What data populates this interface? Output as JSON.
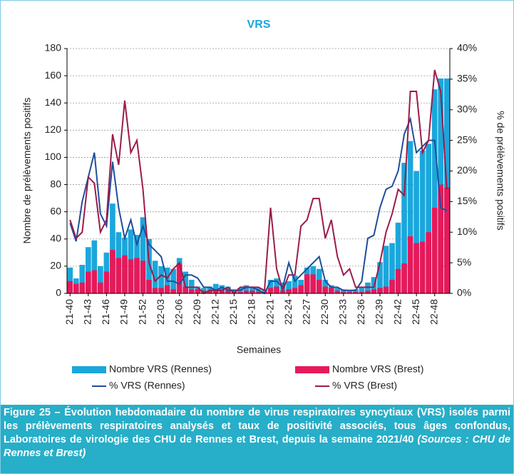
{
  "chart_data": {
    "type": "bar",
    "title": "VRS",
    "categories": [
      "21-40",
      null,
      null,
      "21-43",
      null,
      null,
      "21-46",
      null,
      null,
      "21-49",
      null,
      null,
      "21-52",
      null,
      null,
      "22-03",
      null,
      null,
      "22-06",
      null,
      null,
      "22-09",
      null,
      null,
      "22-12",
      null,
      null,
      "22-15",
      null,
      null,
      "22-18",
      null,
      null,
      "22-21",
      null,
      null,
      "22-24",
      null,
      null,
      "22-27",
      null,
      null,
      "22-30",
      null,
      null,
      "22-33",
      null,
      null,
      "22-36",
      null,
      null,
      "22-39",
      null,
      null,
      "22-42",
      null,
      null,
      "22-45",
      null,
      null,
      "22-48",
      null,
      null
    ],
    "series": [
      {
        "name": "Nombre VRS (Rennes)",
        "type": "bar",
        "color": "#1aa7dc",
        "values": [
          19,
          11,
          21,
          34,
          39,
          20,
          30,
          66,
          45,
          41,
          47,
          43,
          56,
          40,
          24,
          20,
          19,
          18,
          26,
          16,
          10,
          5,
          4,
          5,
          7,
          6,
          5,
          3,
          4,
          6,
          5,
          4,
          3,
          10,
          11,
          8,
          9,
          13,
          10,
          19,
          20,
          18,
          10,
          6,
          4,
          3,
          2,
          3,
          4,
          8,
          12,
          23,
          35,
          37,
          52,
          96,
          112,
          90,
          105,
          110,
          150,
          158,
          158
        ]
      },
      {
        "name": "Nombre VRS (Brest)",
        "type": "bar",
        "color": "#e6195a",
        "values": [
          9,
          7,
          8,
          16,
          17,
          8,
          16,
          32,
          26,
          28,
          25,
          26,
          24,
          10,
          4,
          4,
          6,
          3,
          22,
          5,
          3,
          3,
          2,
          2,
          3,
          2,
          2,
          1,
          1,
          2,
          2,
          1,
          1,
          4,
          5,
          2,
          3,
          4,
          6,
          14,
          14,
          10,
          5,
          4,
          2,
          1,
          1,
          1,
          1,
          2,
          3,
          4,
          5,
          10,
          18,
          22,
          42,
          37,
          38,
          45,
          63,
          80,
          78
        ]
      },
      {
        "name": "% VRS (Rennes)",
        "type": "line",
        "axis": "y2",
        "color": "#1f4e9c",
        "values": [
          11.5,
          8.5,
          15,
          19,
          23,
          13,
          11,
          21.5,
          14,
          9,
          12,
          8,
          11,
          8,
          7,
          6,
          2,
          2,
          1.5,
          3,
          3,
          2.5,
          1,
          1,
          0.5,
          1,
          0.5,
          0.5,
          0.5,
          1,
          1,
          0.5,
          0,
          2,
          2,
          1,
          5,
          2,
          3,
          4,
          5,
          6,
          2,
          1,
          1,
          0.5,
          0.5,
          0.5,
          2,
          9,
          9.5,
          14,
          17,
          17.5,
          20,
          26,
          28.5,
          23,
          24,
          25,
          25,
          14,
          13.5
        ]
      },
      {
        "name": "% VRS (Brest)",
        "type": "line",
        "axis": "y2",
        "color": "#9b1b4b",
        "values": [
          12,
          9,
          10,
          19,
          18,
          10,
          12,
          26,
          21,
          31.5,
          23,
          25,
          17,
          5,
          2,
          3,
          2.5,
          4,
          5,
          1,
          1,
          1,
          0,
          0.5,
          0.5,
          0.5,
          1,
          0,
          1,
          1,
          1,
          1,
          0.5,
          14,
          4,
          0.5,
          3,
          3,
          11,
          12,
          15.5,
          15.5,
          9,
          12,
          6,
          3,
          4,
          1,
          1,
          1,
          1,
          5,
          10,
          13,
          17,
          16,
          33,
          33,
          23,
          25,
          36.5,
          33,
          17
        ]
      }
    ],
    "ylim": [
      0,
      180
    ],
    "yticks": [
      0,
      20,
      40,
      60,
      80,
      100,
      120,
      140,
      160,
      180
    ],
    "y2lim": [
      0,
      40
    ],
    "y2ticks": [
      {
        "value": 0,
        "label": "0%"
      },
      {
        "value": 5,
        "label": "5%"
      },
      {
        "value": 10,
        "label": "10%"
      },
      {
        "value": 15,
        "label": "15%"
      },
      {
        "value": 20,
        "label": "20%"
      },
      {
        "value": 25,
        "label": "25%"
      },
      {
        "value": 30,
        "label": "30%"
      },
      {
        "value": 35,
        "label": "35%"
      },
      {
        "value": 40,
        "label": "40%"
      }
    ],
    "ylabel": "Nombre de prélèvements positifs",
    "y2label": "% de prélèvements positifs",
    "xlabel": "Semaines",
    "grid": true
  },
  "caption": {
    "text": "Figure 25 – Évolution hebdomadaire du nombre de virus respiratoires syncytiaux (VRS) isolés parmi les prélèvements respiratoires analysés et taux de positivité associés, tous âges confondus, Laboratoires de virologie des CHU de Rennes et Brest, depuis la semaine 2021/40",
    "source": "(Sources : CHU de Rennes et Brest)"
  }
}
